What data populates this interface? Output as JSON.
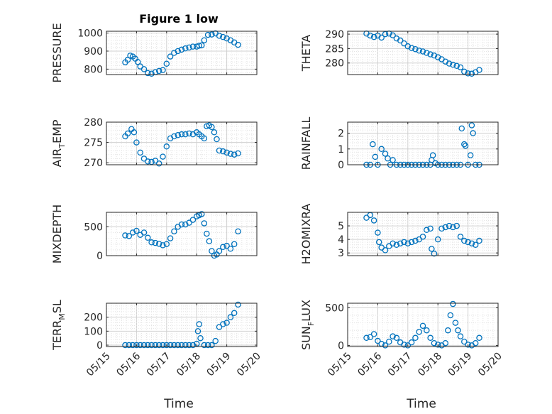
{
  "figure": {
    "title": "Figure 1 low",
    "marker_color": "#0072BD"
  },
  "chart_data": [
    {
      "type": "scatter",
      "ylabel": "PRESSURE",
      "ylabel_sub": "",
      "ylabel_rest": "",
      "ylim": [
        770,
        1010
      ],
      "yticks": [
        800,
        900,
        1000
      ],
      "show_x_ticklabels": false,
      "x": [
        "05/15 15:00",
        "05/15 17:00",
        "05/15 19:00",
        "05/15 21:00",
        "05/15 23:00",
        "05/16 01:00",
        "05/16 03:00",
        "05/16 06:00",
        "05/16 09:00",
        "05/16 12:00",
        "05/16 15:00",
        "05/16 18:00",
        "05/16 21:00",
        "05/17 00:00",
        "05/17 03:00",
        "05/17 06:00",
        "05/17 09:00",
        "05/17 12:00",
        "05/17 15:00",
        "05/17 18:00",
        "05/17 21:00",
        "05/18 00:00",
        "05/18 02:00",
        "05/18 04:00",
        "05/18 06:00",
        "05/18 09:00",
        "05/18 12:00",
        "05/18 15:00",
        "05/18 18:00",
        "05/18 21:00",
        "05/19 00:00",
        "05/19 03:00",
        "05/19 06:00",
        "05/19 09:00"
      ],
      "y": [
        838,
        852,
        875,
        870,
        858,
        840,
        815,
        800,
        778,
        775,
        783,
        790,
        795,
        830,
        870,
        890,
        900,
        908,
        915,
        920,
        925,
        925,
        930,
        932,
        960,
        990,
        992,
        998,
        985,
        978,
        970,
        960,
        948,
        935
      ]
    },
    {
      "type": "scatter",
      "ylabel": "THETA",
      "ylabel_sub": "",
      "ylabel_rest": "",
      "ylim": [
        276,
        291
      ],
      "yticks": [
        280,
        285,
        290
      ],
      "show_x_ticklabels": false,
      "x": [
        "05/15 15:00",
        "05/15 18:00",
        "05/15 21:00",
        "05/16 00:00",
        "05/16 03:00",
        "05/16 06:00",
        "05/16 09:00",
        "05/16 12:00",
        "05/16 15:00",
        "05/16 18:00",
        "05/16 21:00",
        "05/17 00:00",
        "05/17 03:00",
        "05/17 06:00",
        "05/17 09:00",
        "05/17 12:00",
        "05/17 15:00",
        "05/17 18:00",
        "05/17 21:00",
        "05/18 00:00",
        "05/18 03:00",
        "05/18 06:00",
        "05/18 09:00",
        "05/18 12:00",
        "05/18 15:00",
        "05/18 18:00",
        "05/18 21:00",
        "05/19 00:00",
        "05/19 03:00",
        "05/19 06:00",
        "05/19 09:00"
      ],
      "y": [
        290.2,
        289.5,
        289.0,
        289.5,
        288.8,
        290.0,
        290.2,
        289.6,
        288.5,
        287.8,
        286.8,
        285.8,
        285.2,
        284.8,
        284.3,
        284.0,
        283.5,
        283.0,
        282.6,
        282.0,
        281.3,
        280.5,
        279.8,
        279.4,
        279.0,
        278.5,
        277.0,
        276.4,
        276.3,
        276.8,
        277.6
      ]
    },
    {
      "type": "scatter",
      "ylabel": "AIR",
      "ylabel_sub": "T",
      "ylabel_rest": "EMP",
      "ylim": [
        269.5,
        280
      ],
      "yticks": [
        270,
        275,
        280
      ],
      "show_x_ticklabels": false,
      "x": [
        "05/15 15:00",
        "05/15 17:00",
        "05/15 20:00",
        "05/15 22:00",
        "05/16 00:00",
        "05/16 03:00",
        "05/16 06:00",
        "05/16 09:00",
        "05/16 12:00",
        "05/16 15:00",
        "05/16 18:00",
        "05/16 21:00",
        "05/17 00:00",
        "05/17 03:00",
        "05/17 06:00",
        "05/17 09:00",
        "05/17 12:00",
        "05/17 15:00",
        "05/17 18:00",
        "05/17 21:00",
        "05/18 00:00",
        "05/18 02:00",
        "05/18 04:00",
        "05/18 06:00",
        "05/18 08:00",
        "05/18 10:00",
        "05/18 12:00",
        "05/18 14:00",
        "05/18 16:00",
        "05/18 18:00",
        "05/18 21:00",
        "05/19 00:00",
        "05/19 03:00",
        "05/19 06:00",
        "05/19 09:00"
      ],
      "y": [
        276.5,
        277.2,
        278.3,
        277.5,
        275.0,
        272.5,
        271.0,
        270.3,
        270.2,
        270.5,
        269.8,
        271.5,
        274.0,
        276.0,
        276.5,
        276.8,
        277.0,
        277.0,
        277.2,
        277.0,
        277.5,
        277.0,
        276.5,
        276.0,
        279.0,
        279.2,
        278.8,
        277.5,
        275.8,
        273.0,
        272.8,
        272.5,
        272.2,
        272.0,
        272.3
      ]
    },
    {
      "type": "scatter",
      "ylabel": "RAINFALL",
      "ylabel_sub": "",
      "ylabel_rest": "",
      "ylim": [
        0,
        2.7
      ],
      "yticks": [
        0,
        1,
        2
      ],
      "show_x_ticklabels": false,
      "x": [
        "05/15 15:00",
        "05/15 18:00",
        "05/15 20:00",
        "05/15 22:00",
        "05/16 00:00",
        "05/16 03:00",
        "05/16 06:00",
        "05/16 08:00",
        "05/16 10:00",
        "05/16 12:00",
        "05/16 15:00",
        "05/16 18:00",
        "05/16 21:00",
        "05/17 00:00",
        "05/17 03:00",
        "05/17 06:00",
        "05/17 09:00",
        "05/17 12:00",
        "05/17 15:00",
        "05/17 18:00",
        "05/17 19:00",
        "05/17 20:00",
        "05/17 22:00",
        "05/18 00:00",
        "05/18 03:00",
        "05/18 06:00",
        "05/18 09:00",
        "05/18 12:00",
        "05/18 15:00",
        "05/18 18:00",
        "05/18 19:00",
        "05/18 21:00",
        "05/18 22:00",
        "05/19 00:00",
        "05/19 02:00",
        "05/19 03:00",
        "05/19 04:00",
        "05/19 06:00",
        "05/19 09:00"
      ],
      "y": [
        0,
        0,
        1.3,
        0.5,
        0,
        1.0,
        0.7,
        0.4,
        0,
        0.3,
        0,
        0,
        0,
        0,
        0,
        0,
        0,
        0,
        0,
        0,
        0.3,
        0.6,
        0.1,
        0,
        0,
        0,
        0,
        0,
        0,
        0,
        2.3,
        1.3,
        1.2,
        0,
        0.6,
        2.5,
        2.0,
        0,
        0
      ]
    },
    {
      "type": "scatter",
      "ylabel": "MIXDEPTH",
      "ylabel_sub": "",
      "ylabel_rest": "",
      "ylim": [
        0,
        750
      ],
      "yticks": [
        0,
        500
      ],
      "show_x_ticklabels": false,
      "x": [
        "05/15 15:00",
        "05/15 18:00",
        "05/15 21:00",
        "05/16 00:00",
        "05/16 03:00",
        "05/16 06:00",
        "05/16 09:00",
        "05/16 12:00",
        "05/16 15:00",
        "05/16 18:00",
        "05/16 21:00",
        "05/17 00:00",
        "05/17 03:00",
        "05/17 06:00",
        "05/17 09:00",
        "05/17 12:00",
        "05/17 15:00",
        "05/17 18:00",
        "05/17 21:00",
        "05/18 00:00",
        "05/18 02:00",
        "05/18 04:00",
        "05/18 06:00",
        "05/18 08:00",
        "05/18 10:00",
        "05/18 12:00",
        "05/18 14:00",
        "05/18 16:00",
        "05/18 18:00",
        "05/18 21:00",
        "05/19 00:00",
        "05/19 03:00",
        "05/19 06:00",
        "05/19 09:00"
      ],
      "y": [
        350,
        340,
        400,
        430,
        360,
        400,
        310,
        230,
        220,
        205,
        180,
        200,
        300,
        420,
        500,
        540,
        540,
        570,
        620,
        680,
        700,
        720,
        560,
        380,
        250,
        80,
        0,
        20,
        80,
        150,
        170,
        120,
        200,
        420
      ]
    },
    {
      "type": "scatter",
      "ylabel": "H2OMIXRA",
      "ylabel_sub": "",
      "ylabel_rest": "",
      "ylim": [
        2.8,
        6.0
      ],
      "yticks": [
        3,
        4,
        5
      ],
      "show_x_ticklabels": false,
      "x": [
        "05/15 15:00",
        "05/15 18:00",
        "05/15 21:00",
        "05/16 00:00",
        "05/16 01:00",
        "05/16 03:00",
        "05/16 06:00",
        "05/16 09:00",
        "05/16 12:00",
        "05/16 15:00",
        "05/16 18:00",
        "05/16 21:00",
        "05/17 00:00",
        "05/17 03:00",
        "05/17 06:00",
        "05/17 09:00",
        "05/17 12:00",
        "05/17 15:00",
        "05/17 18:00",
        "05/17 19:00",
        "05/17 21:00",
        "05/18 00:00",
        "05/18 03:00",
        "05/18 06:00",
        "05/18 09:00",
        "05/18 12:00",
        "05/18 15:00",
        "05/18 18:00",
        "05/18 21:00",
        "05/19 00:00",
        "05/19 03:00",
        "05/19 06:00",
        "05/19 09:00"
      ],
      "y": [
        5.6,
        5.8,
        5.4,
        4.5,
        3.8,
        3.4,
        3.2,
        3.5,
        3.7,
        3.6,
        3.7,
        3.8,
        3.7,
        3.8,
        3.9,
        4.0,
        4.2,
        4.7,
        4.8,
        3.3,
        2.95,
        4.0,
        4.8,
        4.9,
        5.0,
        4.9,
        5.0,
        4.2,
        3.9,
        3.8,
        3.7,
        3.6,
        3.9
      ]
    },
    {
      "type": "scatter",
      "ylabel": "TERR",
      "ylabel_sub": "M",
      "ylabel_rest": "SL",
      "ylim": [
        -10,
        300
      ],
      "yticks": [
        0,
        100,
        200
      ],
      "show_x_ticklabels": true,
      "x": [
        "05/15 15:00",
        "05/15 18:00",
        "05/15 21:00",
        "05/16 00:00",
        "05/16 03:00",
        "05/16 06:00",
        "05/16 09:00",
        "05/16 12:00",
        "05/16 15:00",
        "05/16 18:00",
        "05/16 21:00",
        "05/17 00:00",
        "05/17 03:00",
        "05/17 06:00",
        "05/17 09:00",
        "05/17 12:00",
        "05/17 15:00",
        "05/17 18:00",
        "05/17 21:00",
        "05/18 00:00",
        "05/18 01:00",
        "05/18 02:00",
        "05/18 03:00",
        "05/18 06:00",
        "05/18 09:00",
        "05/18 12:00",
        "05/18 15:00",
        "05/18 18:00",
        "05/18 21:00",
        "05/19 00:00",
        "05/19 03:00",
        "05/19 06:00",
        "05/19 09:00"
      ],
      "y": [
        0,
        0,
        0,
        0,
        0,
        0,
        0,
        0,
        0,
        0,
        0,
        0,
        0,
        0,
        0,
        0,
        0,
        0,
        0,
        10,
        100,
        150,
        50,
        0,
        0,
        0,
        30,
        130,
        150,
        160,
        200,
        230,
        290
      ]
    },
    {
      "type": "scatter",
      "ylabel": "SUN",
      "ylabel_sub": "F",
      "ylabel_rest": "LUX",
      "ylim": [
        -15,
        560
      ],
      "yticks": [
        0,
        500
      ],
      "show_x_ticklabels": true,
      "x": [
        "05/15 15:00",
        "05/15 18:00",
        "05/15 21:00",
        "05/16 00:00",
        "05/16 03:00",
        "05/16 06:00",
        "05/16 09:00",
        "05/16 12:00",
        "05/16 15:00",
        "05/16 18:00",
        "05/16 21:00",
        "05/17 00:00",
        "05/17 03:00",
        "05/17 06:00",
        "05/17 09:00",
        "05/17 12:00",
        "05/17 15:00",
        "05/17 18:00",
        "05/17 21:00",
        "05/18 00:00",
        "05/18 03:00",
        "05/18 06:00",
        "05/18 08:00",
        "05/18 10:00",
        "05/18 12:00",
        "05/18 14:00",
        "05/18 16:00",
        "05/18 18:00",
        "05/18 21:00",
        "05/19 00:00",
        "05/19 03:00",
        "05/19 06:00",
        "05/19 09:00"
      ],
      "y": [
        100,
        110,
        150,
        60,
        20,
        0,
        50,
        120,
        100,
        40,
        10,
        0,
        40,
        100,
        180,
        260,
        200,
        100,
        30,
        10,
        0,
        30,
        200,
        400,
        550,
        300,
        200,
        120,
        50,
        10,
        0,
        30,
        100
      ]
    }
  ],
  "x_axis": {
    "tick_dates": [
      "05/15 00:00",
      "05/16 00:00",
      "05/17 00:00",
      "05/18 00:00",
      "05/19 00:00",
      "05/20 00:00"
    ],
    "tick_labels": [
      "05/15",
      "05/16",
      "05/17",
      "05/18",
      "05/19",
      "05/20"
    ],
    "xlim": [
      "05/15 00:00",
      "05/20 00:00"
    ],
    "left_xlabel": "Time",
    "right_xlabel": "Time"
  }
}
